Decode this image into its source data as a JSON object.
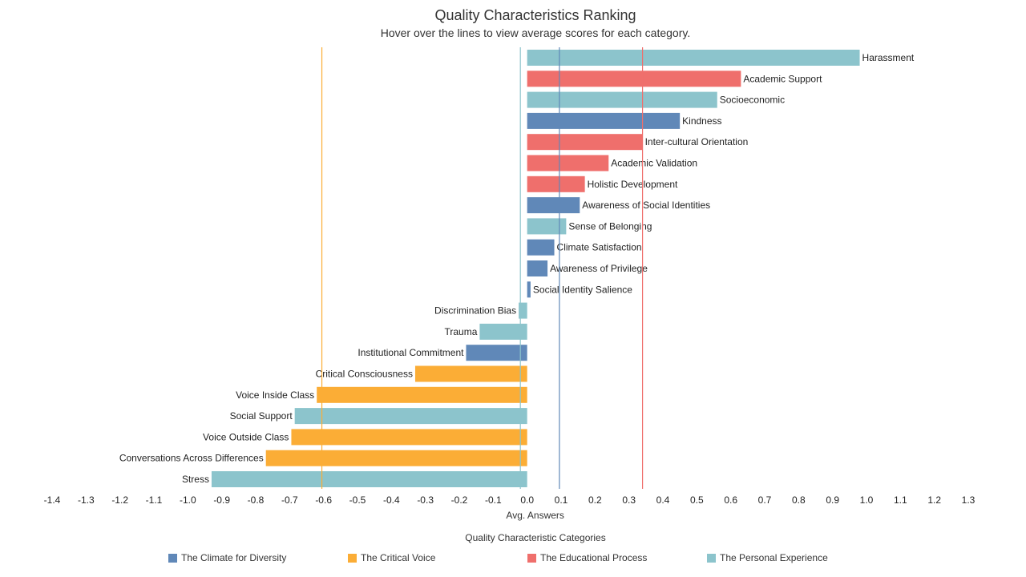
{
  "chart_data": {
    "type": "bar",
    "orientation": "horizontal",
    "title": "Quality Characteristics Ranking",
    "subtitle": "Hover over the lines to view average scores for each category.",
    "xlabel": "Avg. Answers",
    "xlim": [
      -1.4,
      1.3
    ],
    "xticks": [
      "-1.4",
      "-1.3",
      "-1.2",
      "-1.1",
      "-1.0",
      "-0.9",
      "-0.8",
      "-0.7",
      "-0.6",
      "-0.5",
      "-0.4",
      "-0.3",
      "-0.2",
      "-0.1",
      "0.0",
      "0.1",
      "0.2",
      "0.3",
      "0.4",
      "0.5",
      "0.6",
      "0.7",
      "0.8",
      "0.9",
      "1.0",
      "1.1",
      "1.2",
      "1.3"
    ],
    "legend_title": "Quality Characteristic Categories",
    "legend_position": "bottom",
    "categories": [
      {
        "name": "The Climate for Diversity",
        "color": "#6088b8"
      },
      {
        "name": "The Critical Voice",
        "color": "#fbad36"
      },
      {
        "name": "The Educational Process",
        "color": "#ef6f6c"
      },
      {
        "name": "The Personal Experience",
        "color": "#8cc4cc"
      }
    ],
    "bars": [
      {
        "label": "Harassment",
        "value": 0.98,
        "category": 3
      },
      {
        "label": "Academic Support",
        "value": 0.63,
        "category": 2
      },
      {
        "label": "Socioeconomic",
        "value": 0.56,
        "category": 3
      },
      {
        "label": "Kindness",
        "value": 0.45,
        "category": 0
      },
      {
        "label": "Inter-cultural Orientation",
        "value": 0.34,
        "category": 2
      },
      {
        "label": "Academic Validation",
        "value": 0.24,
        "category": 2
      },
      {
        "label": "Holistic Development",
        "value": 0.17,
        "category": 2
      },
      {
        "label": "Awareness of Social Identities",
        "value": 0.155,
        "category": 0
      },
      {
        "label": "Sense of Belonging",
        "value": 0.115,
        "category": 3
      },
      {
        "label": "Climate Satisfaction",
        "value": 0.08,
        "category": 0
      },
      {
        "label": "Awareness of Privilege",
        "value": 0.06,
        "category": 0
      },
      {
        "label": "Social Identity Salience",
        "value": 0.01,
        "category": 0
      },
      {
        "label": "Discrimination Bias",
        "value": -0.025,
        "category": 3
      },
      {
        "label": "Trauma",
        "value": -0.14,
        "category": 3
      },
      {
        "label": "Institutional Commitment",
        "value": -0.18,
        "category": 0
      },
      {
        "label": "Critical Consciousness",
        "value": -0.33,
        "category": 1
      },
      {
        "label": "Voice Inside Class",
        "value": -0.62,
        "category": 1
      },
      {
        "label": "Social Support",
        "value": -0.685,
        "category": 3
      },
      {
        "label": "Voice Outside Class",
        "value": -0.695,
        "category": 1
      },
      {
        "label": "Conversations Across Differences",
        "value": -0.77,
        "category": 1
      },
      {
        "label": "Stress",
        "value": -0.93,
        "category": 3
      }
    ],
    "reference_lines": [
      {
        "category": 1,
        "value": -0.605
      },
      {
        "category": 3,
        "value": -0.02
      },
      {
        "category": 0,
        "value": 0.095
      },
      {
        "category": 2,
        "value": 0.34
      }
    ],
    "grid": false
  }
}
